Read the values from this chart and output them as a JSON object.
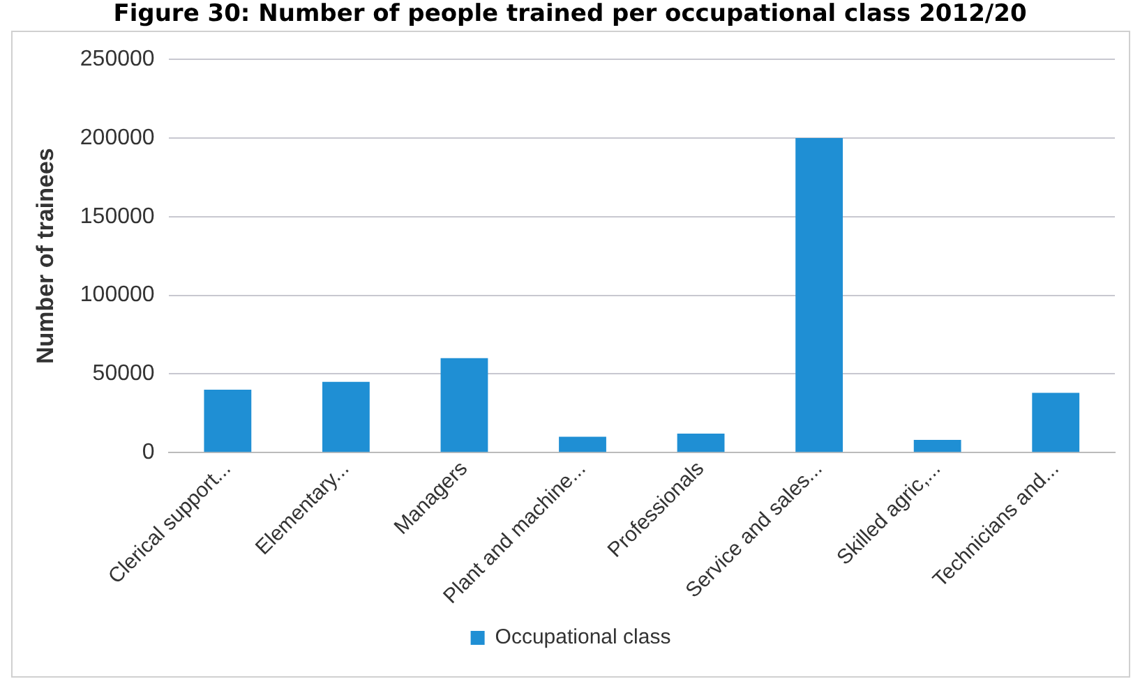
{
  "chart_data": {
    "type": "bar",
    "title": "Figure 30: Number of people trained per occupational class 2012/20",
    "ylabel": "Number of trainees",
    "categories": [
      "Clerical support...",
      "Elementary...",
      "Managers",
      "Plant and machine...",
      "Professionals",
      "Service and sales...",
      "Skilled agric,...",
      "Technicians and..."
    ],
    "series": [
      {
        "name": "Occupational class",
        "color": "#1f8fd4",
        "values": [
          40000,
          45000,
          60000,
          10000,
          12000,
          200000,
          8000,
          38000
        ]
      }
    ],
    "ylim": [
      0,
      250000
    ],
    "yticks": [
      0,
      50000,
      100000,
      150000,
      200000,
      250000
    ],
    "grid": "y",
    "legend": "bottom"
  }
}
